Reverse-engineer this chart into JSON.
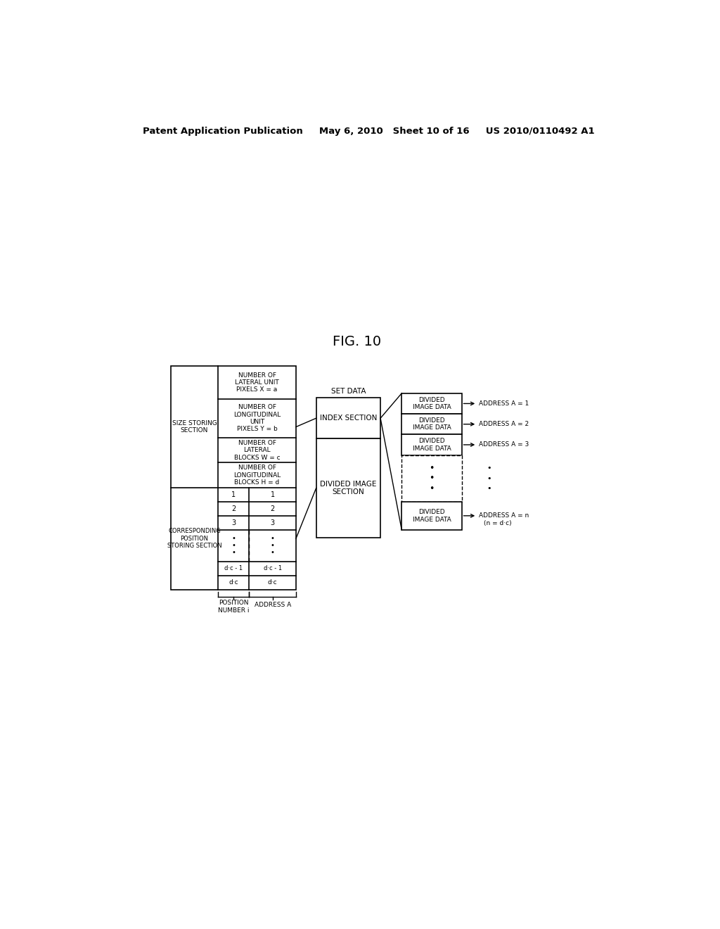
{
  "header": "Patent Application Publication     May 6, 2010   Sheet 10 of 16     US 2010/0110492 A1",
  "fig_title": "FIG. 10",
  "background_color": "#ffffff",
  "size_storing_label": "SIZE STORING\nSECTION",
  "corr_pos_label": "CORRESPONDING\nPOSITION\nSTORING SECTION",
  "row1_text": "NUMBER OF\nLATERAL UNIT\nPIXELS X = a",
  "row2_text": "NUMBER OF\nLONGITUDINAL\nUNIT\nPIXELS Y = b",
  "row3_text": "NUMBER OF\nLATERAL\nBLOCKS W = c",
  "row4_text": "NUMBER OF\nLONGITUDINAL\nBLOCKS H = d",
  "set_data_label": "SET DATA",
  "index_section_label": "INDEX SECTION",
  "div_image_section_label": "DIVIDED IMAGE\nSECTION",
  "div_image_data_label": "DIVIDED\nIMAGE DATA",
  "pos_number_label": "POSITION\nNUMBER i",
  "address_a_label": "ADDRESS A",
  "addr1": "ADDRESS A = 1",
  "addr2": "ADDRESS A = 2",
  "addr3": "ADDRESS A = 3",
  "addrn": "ADDRESS A = n",
  "addrn_sub": "(n = d·c)",
  "dc_minus1": "d·c - 1",
  "dc": "d·c"
}
